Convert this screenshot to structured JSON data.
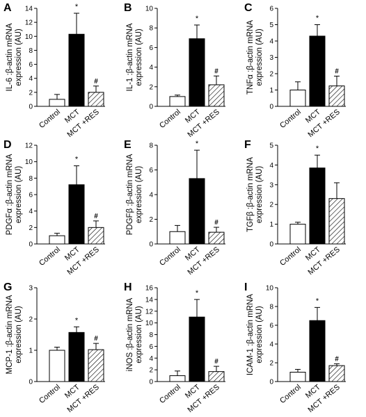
{
  "chart_data": [
    {
      "panel": "A",
      "type": "bar",
      "ylabel_lines": [
        "IL-6 :β-actin mRNA",
        "expression (AU)"
      ],
      "ylim": [
        0,
        14
      ],
      "yticks": [
        0,
        2,
        4,
        6,
        8,
        10,
        12,
        14
      ],
      "categories": [
        "Control",
        "MCT",
        "MCT +RES"
      ],
      "values": [
        1.0,
        10.3,
        2.0
      ],
      "errors": [
        0.7,
        3.0,
        0.9
      ],
      "markers": [
        "",
        "*",
        "#"
      ]
    },
    {
      "panel": "B",
      "type": "bar",
      "ylabel_lines": [
        "IL-1 :β-actin mRNA",
        "expression (AU)"
      ],
      "ylim": [
        0,
        10
      ],
      "yticks": [
        0,
        2,
        4,
        6,
        8,
        10
      ],
      "categories": [
        "Control",
        "MCT",
        "MCT +RES"
      ],
      "values": [
        1.0,
        6.9,
        2.2
      ],
      "errors": [
        0.15,
        1.4,
        0.9
      ],
      "markers": [
        "",
        "*",
        "#"
      ]
    },
    {
      "panel": "C",
      "type": "bar",
      "ylabel_lines": [
        "TNFα :β-actin mRNA",
        "expression (AU)"
      ],
      "ylim": [
        0,
        6
      ],
      "yticks": [
        0,
        1,
        2,
        3,
        4,
        5,
        6
      ],
      "categories": [
        "Control",
        "MCT",
        "MCT +RES"
      ],
      "values": [
        1.0,
        4.3,
        1.25
      ],
      "errors": [
        0.5,
        0.7,
        0.6
      ],
      "markers": [
        "",
        "*",
        "#"
      ]
    },
    {
      "panel": "D",
      "type": "bar",
      "ylabel_lines": [
        "PDGFα :β-actin mRNA",
        "expression (AU)"
      ],
      "ylim": [
        0,
        12
      ],
      "yticks": [
        0,
        2,
        4,
        6,
        8,
        10,
        12
      ],
      "categories": [
        "Control",
        "MCT",
        "MCT +RES"
      ],
      "values": [
        1.0,
        7.2,
        2.0
      ],
      "errors": [
        0.3,
        2.3,
        0.8
      ],
      "markers": [
        "",
        "*",
        "#"
      ]
    },
    {
      "panel": "E",
      "type": "bar",
      "ylabel_lines": [
        "PDGFβ :β-actin mRNA",
        "expression (AU)"
      ],
      "ylim": [
        0,
        8
      ],
      "yticks": [
        0,
        2,
        4,
        6,
        8
      ],
      "categories": [
        "Control",
        "MCT",
        "MCT +RES"
      ],
      "values": [
        1.0,
        5.3,
        0.95
      ],
      "errors": [
        0.5,
        2.3,
        0.4
      ],
      "markers": [
        "",
        "*",
        "#"
      ]
    },
    {
      "panel": "F",
      "type": "bar",
      "ylabel_lines": [
        "TGFβ :β-actin mRNA",
        "expression (AU)"
      ],
      "ylim": [
        0,
        5
      ],
      "yticks": [
        0,
        1,
        2,
        3,
        4,
        5
      ],
      "categories": [
        "Control",
        "MCT",
        "MCT +RES"
      ],
      "values": [
        1.0,
        3.85,
        2.3
      ],
      "errors": [
        0.1,
        0.65,
        0.8
      ],
      "markers": [
        "",
        "*",
        ""
      ]
    },
    {
      "panel": "G",
      "type": "bar",
      "ylabel_lines": [
        "MCP-1 :β-actin mRNA",
        "expression (AU)"
      ],
      "ylim": [
        0,
        3
      ],
      "yticks": [
        0,
        1,
        2,
        3
      ],
      "categories": [
        "Control",
        "MCT",
        "MCT +RES"
      ],
      "values": [
        1.0,
        1.57,
        1.02
      ],
      "errors": [
        0.1,
        0.18,
        0.2
      ],
      "markers": [
        "",
        "*",
        "#"
      ]
    },
    {
      "panel": "H",
      "type": "bar",
      "ylabel_lines": [
        "iNOS :β-actin mRNA",
        "expression (AU)"
      ],
      "ylim": [
        0,
        16
      ],
      "yticks": [
        0,
        2,
        4,
        6,
        8,
        10,
        12,
        14,
        16
      ],
      "categories": [
        "Control",
        "MCT",
        "MCT +RES"
      ],
      "values": [
        1.0,
        11.0,
        1.7
      ],
      "errors": [
        0.8,
        3.0,
        0.9
      ],
      "markers": [
        "",
        "*",
        "#"
      ]
    },
    {
      "panel": "I",
      "type": "bar",
      "ylabel_lines": [
        "ICAM-1 :β-actin mRNA",
        "expression (AU)"
      ],
      "ylim": [
        0,
        10
      ],
      "yticks": [
        0,
        2,
        4,
        6,
        8,
        10
      ],
      "categories": [
        "Control",
        "MCT",
        "MCT +RES"
      ],
      "values": [
        1.0,
        6.5,
        1.7
      ],
      "errors": [
        0.3,
        1.4,
        0.2
      ],
      "markers": [
        "",
        "*",
        "#"
      ]
    }
  ],
  "bar_fills": [
    "#ffffff",
    "#000000",
    "hatched"
  ],
  "axis_color": "#000000"
}
